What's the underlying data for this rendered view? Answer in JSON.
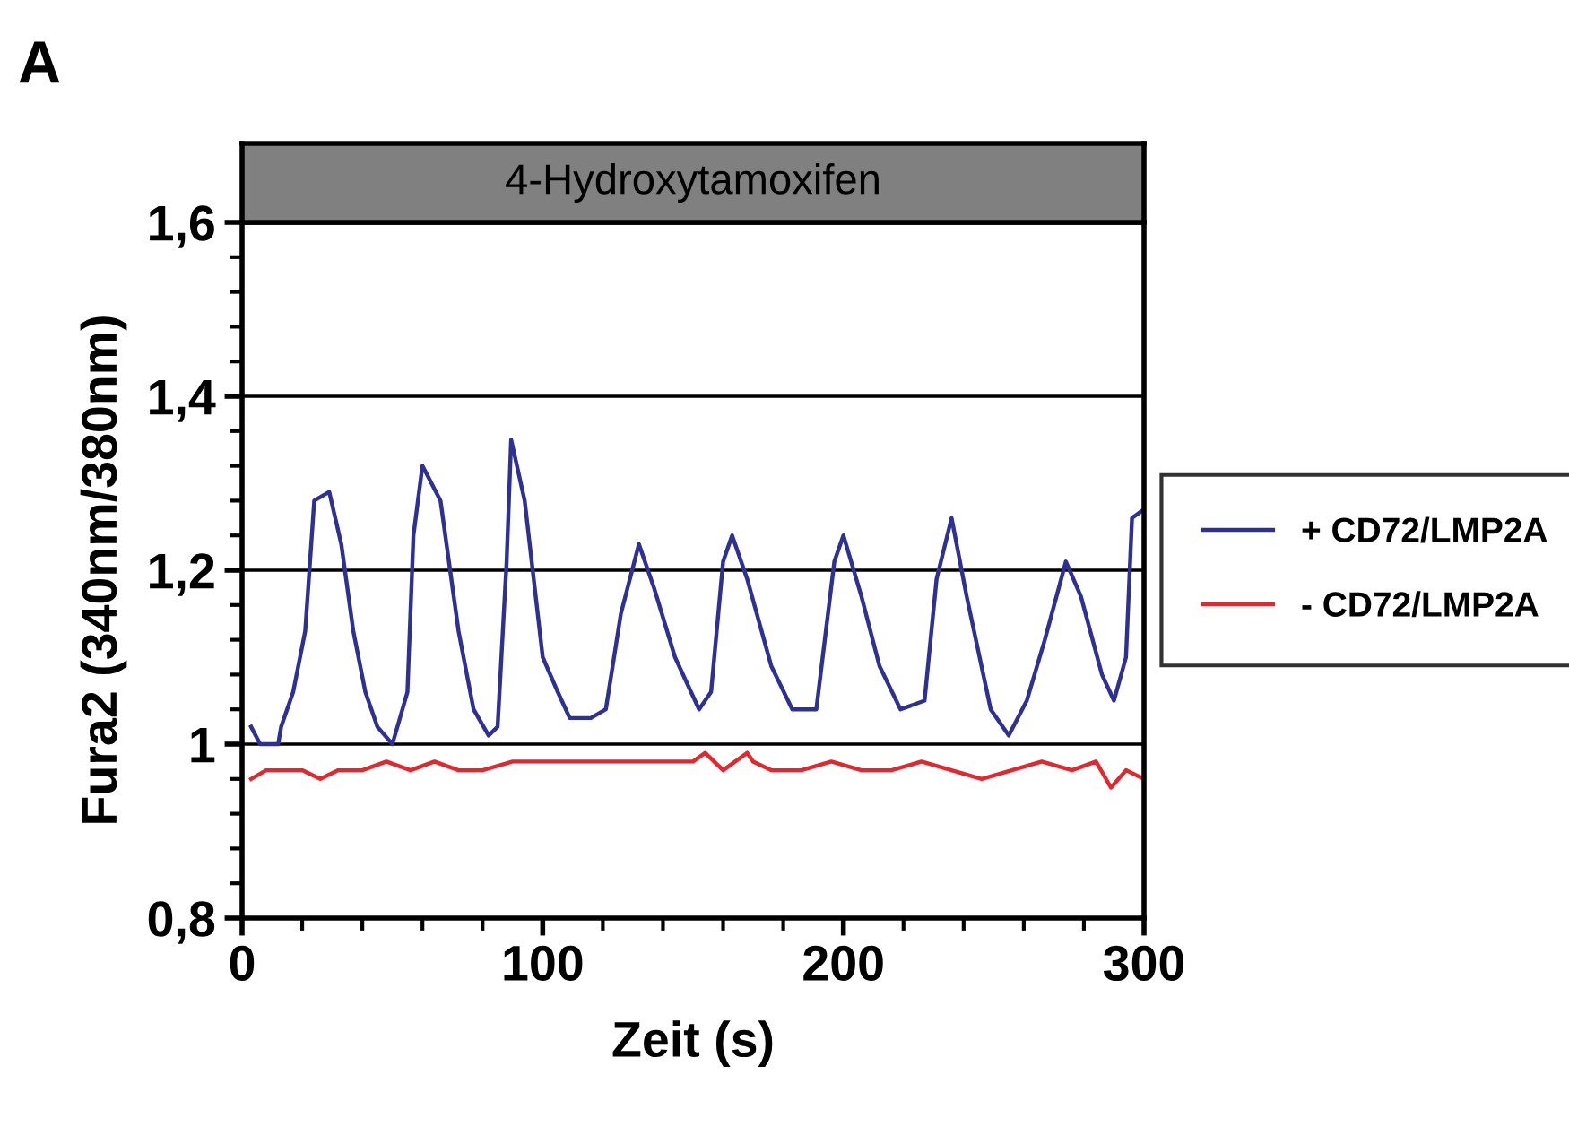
{
  "chart_data": {
    "type": "line",
    "title": "4-Hydroxytamoxifen",
    "xlabel": "Zeit (s)",
    "ylabel": "Fura2 (340nm/380nm)",
    "annotations": [
      "A"
    ],
    "xlim": [
      0,
      300
    ],
    "ylim": [
      0.8,
      1.6
    ],
    "xticks": [
      0,
      {
        "value": 20,
        "label": null
      },
      {
        "value": 40,
        "label": null
      },
      {
        "value": 60,
        "label": null
      },
      {
        "value": 80,
        "label": null
      },
      100,
      {
        "value": 120,
        "label": null
      },
      {
        "value": 140,
        "label": null
      },
      {
        "value": 160,
        "label": null
      },
      {
        "value": 180,
        "label": null
      },
      200,
      {
        "value": 220,
        "label": null
      },
      {
        "value": 240,
        "label": null
      },
      {
        "value": 260,
        "label": null
      },
      {
        "value": 280,
        "label": null
      },
      300
    ],
    "yticks": [
      {
        "value": 0.8,
        "label": "0,8"
      },
      {
        "value": 0.84,
        "label": null
      },
      {
        "value": 0.88,
        "label": null
      },
      {
        "value": 0.92,
        "label": null
      },
      {
        "value": 0.96,
        "label": null
      },
      1,
      {
        "value": 1.04,
        "label": null
      },
      {
        "value": 1.08,
        "label": null
      },
      {
        "value": 1.12,
        "label": null
      },
      {
        "value": 1.16,
        "label": null
      },
      {
        "value": 1.2,
        "label": "1,2"
      },
      {
        "value": 1.24,
        "label": null
      },
      {
        "value": 1.28,
        "label": null
      },
      {
        "value": 1.32,
        "label": null
      },
      {
        "value": 1.36,
        "label": null
      },
      {
        "value": 1.4,
        "label": "1,4"
      },
      {
        "value": 1.44,
        "label": null
      },
      {
        "value": 1.48,
        "label": null
      },
      {
        "value": 1.52,
        "label": null
      },
      {
        "value": 1.56,
        "label": null
      },
      {
        "value": 1.6,
        "label": "1,6"
      }
    ],
    "grid": "y",
    "legend": "right",
    "line_style": "solid",
    "series": [
      {
        "name": "+ CD72/LMP2A",
        "color": "#2e3192",
        "x": [
          3,
          6,
          12,
          13,
          17,
          21,
          24,
          29,
          33,
          37,
          41,
          45,
          50,
          55,
          57,
          60,
          66,
          72,
          77,
          82,
          85,
          88,
          89.5,
          94,
          100,
          105,
          109,
          116,
          121,
          126,
          132,
          137,
          144,
          152,
          156,
          160,
          163,
          168,
          176,
          183,
          191,
          197,
          200,
          206,
          212,
          219,
          227,
          231,
          236,
          241,
          249,
          255,
          261,
          267,
          274,
          279,
          286,
          290,
          294,
          296,
          300
        ],
        "values": [
          1.02,
          1.0,
          1.0,
          1.02,
          1.06,
          1.13,
          1.28,
          1.29,
          1.23,
          1.13,
          1.06,
          1.02,
          1.0,
          1.06,
          1.24,
          1.32,
          1.28,
          1.13,
          1.04,
          1.01,
          1.02,
          1.21,
          1.35,
          1.28,
          1.1,
          1.06,
          1.03,
          1.03,
          1.04,
          1.15,
          1.23,
          1.18,
          1.1,
          1.04,
          1.06,
          1.21,
          1.24,
          1.19,
          1.09,
          1.04,
          1.04,
          1.21,
          1.24,
          1.17,
          1.09,
          1.04,
          1.05,
          1.19,
          1.26,
          1.17,
          1.04,
          1.01,
          1.05,
          1.12,
          1.21,
          1.17,
          1.08,
          1.05,
          1.1,
          1.26,
          1.27
        ]
      },
      {
        "name": "- CD72/LMP2A",
        "color": "#e0282e",
        "x": [
          3,
          8,
          14,
          20,
          26,
          32,
          40,
          48,
          56,
          64,
          72,
          80,
          90,
          100,
          110,
          120,
          130,
          140,
          150,
          154,
          160,
          168,
          170,
          176,
          186,
          196,
          206,
          216,
          226,
          236,
          246,
          256,
          266,
          276,
          284,
          289,
          294,
          300
        ],
        "values": [
          0.96,
          0.97,
          0.97,
          0.97,
          0.96,
          0.97,
          0.97,
          0.98,
          0.97,
          0.98,
          0.97,
          0.97,
          0.98,
          0.98,
          0.98,
          0.98,
          0.98,
          0.98,
          0.98,
          0.99,
          0.97,
          0.99,
          0.98,
          0.97,
          0.97,
          0.98,
          0.97,
          0.97,
          0.98,
          0.97,
          0.96,
          0.97,
          0.98,
          0.97,
          0.98,
          0.95,
          0.97,
          0.96
        ]
      }
    ]
  }
}
